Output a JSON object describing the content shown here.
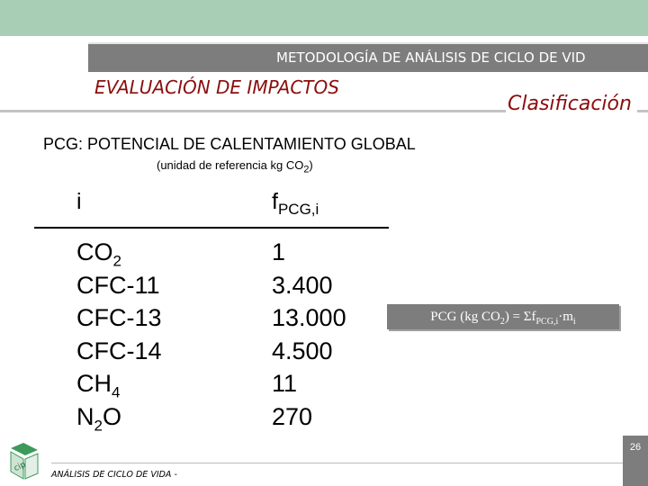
{
  "header": {
    "methodology": "METODOLOGÍA DE ANÁLISIS DE CICLO DE VID",
    "section_title": "EVALUACIÓN DE IMPACTOS",
    "section_subtitle": "Clasificación"
  },
  "pcg": {
    "title": "PCG: POTENCIAL DE CALENTAMIENTO GLOBAL",
    "unit_prefix": "(unidad de referencia kg CO",
    "unit_sub": "2",
    "unit_suffix": ")"
  },
  "table": {
    "col_i": "i",
    "col_f": "f",
    "col_f_sub": "PCG,i",
    "rows": [
      {
        "main": "CO",
        "sub": "2",
        "value": "1"
      },
      {
        "main": "CFC-11",
        "sub": "",
        "value": "3.400"
      },
      {
        "main": "CFC-13",
        "sub": "",
        "value": "13.000"
      },
      {
        "main": "CFC-14",
        "sub": "",
        "value": "4.500"
      },
      {
        "main": "CH",
        "sub": "4",
        "value": "11"
      },
      {
        "main": "N",
        "sub": "2",
        "post": "O",
        "value": "270"
      }
    ]
  },
  "formula": {
    "lhs": "PCG (kg CO",
    "lhs_sub": "2",
    "eq": ") = Σf",
    "f_sub": "PCG,i",
    "tail": "·m",
    "m_sub": "i"
  },
  "footer": {
    "text": "ANÁLISIS DE CICLO DE VIDA -",
    "page_number": "26",
    "logo_text": "cip"
  },
  "colors": {
    "top_band": "#a8cfb6",
    "header_gray": "#7d7d7d",
    "accent_red": "#8b0d0d"
  }
}
